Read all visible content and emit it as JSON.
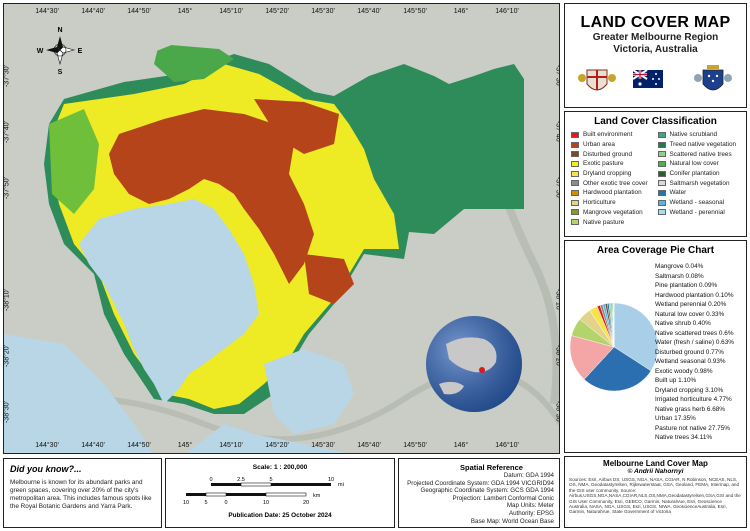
{
  "map": {
    "top_ticks": [
      "144°30'",
      "144°40'",
      "144°50'",
      "145°",
      "145°10'",
      "145°20'",
      "145°30'",
      "145°40'",
      "145°50'",
      "146°",
      "146°10'"
    ],
    "bottom_ticks": [
      "144°30'",
      "144°40'",
      "144°50'",
      "145°",
      "145°10'",
      "145°20'",
      "145°30'",
      "145°40'",
      "145°50'",
      "146°",
      "146°10'"
    ],
    "left_ticks": [
      "-37°30'",
      "-37°40'",
      "-37°50'",
      "-38°",
      "-38°10'",
      "-38°20'",
      "-38°30'"
    ],
    "right_ticks": [
      "-37°30'",
      "-37°40'",
      "-37°50'",
      "-38°",
      "-38°10'",
      "-38°20'",
      "-38°30'"
    ],
    "compass": {
      "n": "N",
      "s": "S",
      "e": "E",
      "w": "W"
    },
    "colors": {
      "sea": "#b8d6e6",
      "urban": "#b5441b",
      "pasture": "#f2ee1f",
      "native": "#2d8c5a",
      "grass": "#7cc23d",
      "terrain": "#c8ccc4"
    }
  },
  "title": {
    "main": "LAND COVER MAP",
    "line1": "Greater Melbourne Region",
    "line2": "Victoria, Australia"
  },
  "legend": {
    "title": "Land Cover Classification",
    "items": [
      {
        "label": "Built environment",
        "color": "#e31a1c"
      },
      {
        "label": "Native scrubland",
        "color": "#3fa57a"
      },
      {
        "label": "Urban area",
        "color": "#b5441b"
      },
      {
        "label": "Treed native vegetation",
        "color": "#1f7a4d"
      },
      {
        "label": "Disturbed ground",
        "color": "#7a4a2a"
      },
      {
        "label": "Scattered native trees",
        "color": "#8fd18a"
      },
      {
        "label": "Exotic pasture",
        "color": "#f2ee1f"
      },
      {
        "label": "Natural low cover",
        "color": "#4caf50"
      },
      {
        "label": "Dryland cropping",
        "color": "#f7e34a"
      },
      {
        "label": "Conifer plantation",
        "color": "#2e5e2e"
      },
      {
        "label": "Other exotic tree cover",
        "color": "#8c8c8c"
      },
      {
        "label": "Saltmarsh vegetation",
        "color": "#d9d9d9"
      },
      {
        "label": "Hardwood plantation",
        "color": "#d48b00"
      },
      {
        "label": "Water",
        "color": "#1f78b4"
      },
      {
        "label": "Horticulture",
        "color": "#e2d28a"
      },
      {
        "label": "Wetland - seasonal",
        "color": "#5ab4e6"
      },
      {
        "label": "Mangrove vegetation",
        "color": "#8a9a2a"
      },
      {
        "label": "Wetland - perennial",
        "color": "#a6dbf2"
      },
      {
        "label": "Native pasture",
        "color": "#b3d36b"
      }
    ]
  },
  "pie": {
    "title": "Area Coverage Pie Chart"
  },
  "chart_data": {
    "type": "pie",
    "title": "Area Coverage Pie Chart",
    "slices": [
      {
        "label": "Mangrove",
        "value": 0.04,
        "text": "Mangrove 0.04%",
        "color": "#8a9a2a"
      },
      {
        "label": "Saltmarsh",
        "value": 0.08,
        "text": "Saltmarsh 0.08%",
        "color": "#d9d9d9"
      },
      {
        "label": "Pine plantation",
        "value": 0.09,
        "text": "Pine plantation 0.09%",
        "color": "#2e5e2e"
      },
      {
        "label": "Hardwood plantation",
        "value": 0.1,
        "text": "Hardwood plantation 0.10%",
        "color": "#d48b00"
      },
      {
        "label": "Wetland perennial",
        "value": 0.2,
        "text": "Wetland perennial 0.20%",
        "color": "#a6dbf2"
      },
      {
        "label": "Natural low cover",
        "value": 0.33,
        "text": "Natural low cover 0.33%",
        "color": "#4caf50"
      },
      {
        "label": "Native shrub",
        "value": 0.4,
        "text": "Native shrub 0.40%",
        "color": "#3fa57a"
      },
      {
        "label": "Native scattered trees",
        "value": 0.6,
        "text": "Native scattered trees 0.6%",
        "color": "#8fd18a"
      },
      {
        "label": "Water (fresh / saline)",
        "value": 0.63,
        "text": "Water (fresh / saline) 0.63%",
        "color": "#1f78b4"
      },
      {
        "label": "Disturbed ground",
        "value": 0.77,
        "text": "Disturbed ground 0.77%",
        "color": "#7a4a2a"
      },
      {
        "label": "Wetland seasonal",
        "value": 0.93,
        "text": "Wetland seasonal 0.93%",
        "color": "#5ab4e6"
      },
      {
        "label": "Exotic woody",
        "value": 0.98,
        "text": "Exotic woody 0.98%",
        "color": "#8c8c8c"
      },
      {
        "label": "Built up",
        "value": 1.1,
        "text": "Built up 1.10%",
        "color": "#e31a1c"
      },
      {
        "label": "Dryland cropping",
        "value": 3.1,
        "text": "Dryland cropping 3.10%",
        "color": "#f7e34a"
      },
      {
        "label": "Irrigated horticulture",
        "value": 4.77,
        "text": "Irrigated horticulture 4.77%",
        "color": "#e2d28a"
      },
      {
        "label": "Native grass herb",
        "value": 6.68,
        "text": "Native grass herb 6.68%",
        "color": "#b3d36b"
      },
      {
        "label": "Urban",
        "value": 17.35,
        "text": "Urban 17.35%",
        "color": "#f4a6a6"
      },
      {
        "label": "Pasture not native",
        "value": 27.75,
        "text": "Pasture not native 27.75%",
        "color": "#2b6fb0"
      },
      {
        "label": "Native trees",
        "value": 34.11,
        "text": "Native trees 34.11%",
        "color": "#a9cfe8"
      }
    ]
  },
  "did_you_know": {
    "title": "Did you know?...",
    "text": "Melbourne is known for its abundant parks and green spaces, covering over 20% of the city's metropolitan area. This includes famous spots like the Royal Botanic Gardens and Yarra Park."
  },
  "scale": {
    "title": "Scale: 1 : 200,000",
    "miles_ticks": [
      "0",
      "2.5",
      "5",
      "10"
    ],
    "miles_unit": "mi",
    "km_ticks": [
      "10",
      "5",
      "0",
      "10",
      "20"
    ],
    "km_unit": "km",
    "publication": "Publication Date: 25 October 2024"
  },
  "reference": {
    "title": "Spatial Reference",
    "lines": [
      "Datum: GDA 1994",
      "Projected Coordinate System: GDA 1994 VICGRID94",
      "Geographic Coordinate System: GCS GDA 1994",
      "Projection: Lambert Conformal Conic",
      "Map Units: Meter",
      "Authority: EPSG",
      "Base Map: World Ocean Base"
    ]
  },
  "credit": {
    "title": "Melbourne Land Cover Map",
    "author": "© Andrii Nahornyi",
    "sources": "Sources: Esri, Airbus DS, USGS, NGA, NASA, CGIAR, N Robinson, NCEAS, NLS, OS, NMA, Geodatastyrelsen, Rijkswaterstaat, GSA, Geoland, FEMA, Intermap, and the GIS user community. Source: Airbus,USGS,NGA,NASA,CGIAR,NLS,OS,NMA,Geodatastyrelsen,GSA,GSI and the GIS User Community, Esri, GEBCO, Garmin, NaturalVue, Esri, Geoscience Australia, NASA, NGA, USGS, Esri, USGS, NIWA, GeoscienceAustralia, Esri, Garmin, NaturalVue, State Government of Victoria"
  }
}
